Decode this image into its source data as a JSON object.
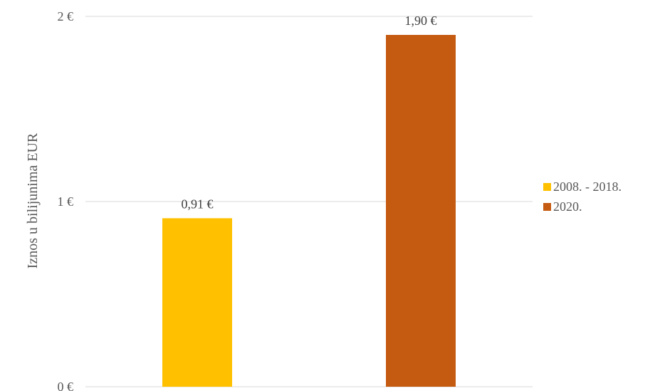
{
  "chart_data": {
    "type": "bar",
    "categories": [
      "2008. - 2018.",
      "2020."
    ],
    "values": [
      0.91,
      1.9
    ],
    "data_labels": [
      "0,91 €",
      "1,90 €"
    ],
    "colors": [
      "#FFC000",
      "#C55A11"
    ],
    "ylabel": "Iznos u bilijunima EUR",
    "ylim": [
      0,
      2
    ],
    "yticks": [
      0,
      1,
      2
    ],
    "ytick_labels": [
      "0 €",
      "1 €",
      "2 €"
    ],
    "grid": true,
    "legend": {
      "position": "right",
      "entries": [
        "2008. - 2018.",
        "2020."
      ]
    }
  }
}
